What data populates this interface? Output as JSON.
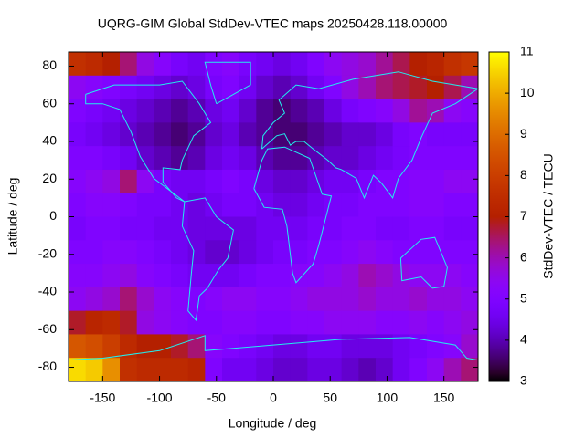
{
  "chart_data": {
    "type": "heatmap",
    "title": "UQRG-GIM Global StdDev-VTEC maps 20250428.118.00000",
    "x_label": "Longitude / deg",
    "y_label": "Latitude / deg",
    "colorbar_label": "StdDev-VTEC / TECU",
    "colormap": "gnuplot",
    "xlim": [
      -180,
      180
    ],
    "ylim": [
      -87.5,
      87.5
    ],
    "zlim": [
      3,
      11
    ],
    "xticks": [
      -150,
      -100,
      -50,
      0,
      50,
      100,
      150
    ],
    "yticks": [
      -80,
      -60,
      -40,
      -20,
      0,
      20,
      40,
      60,
      80
    ],
    "zticks": [
      3,
      4,
      5,
      6,
      7,
      8,
      9,
      10,
      11
    ],
    "x": [
      -172.5,
      -157.5,
      -142.5,
      -127.5,
      -112.5,
      -97.5,
      -82.5,
      -67.5,
      -52.5,
      -37.5,
      -22.5,
      -7.5,
      7.5,
      22.5,
      37.5,
      52.5,
      67.5,
      82.5,
      97.5,
      112.5,
      127.5,
      142.5,
      157.5,
      172.5
    ],
    "y": [
      81.25,
      68.75,
      56.25,
      43.75,
      31.25,
      18.75,
      6.25,
      -6.25,
      -18.75,
      -31.25,
      -43.75,
      -56.25,
      -68.75,
      -81.25
    ],
    "z": [
      [
        7.6,
        7.4,
        7.0,
        6.4,
        5.6,
        5.2,
        4.8,
        4.6,
        5.0,
        5.2,
        4.8,
        4.6,
        4.4,
        4.6,
        5.0,
        5.4,
        5.6,
        5.8,
        6.2,
        6.6,
        7.0,
        7.2,
        7.6,
        7.8
      ],
      [
        5.4,
        5.2,
        5.0,
        4.8,
        4.6,
        4.4,
        4.2,
        4.4,
        4.8,
        5.0,
        4.6,
        4.2,
        4.0,
        4.2,
        4.6,
        5.0,
        5.6,
        6.0,
        6.4,
        6.6,
        6.8,
        7.0,
        6.6,
        6.0
      ],
      [
        5.0,
        4.8,
        4.6,
        4.4,
        4.2,
        4.0,
        3.8,
        4.0,
        4.4,
        4.6,
        4.2,
        3.8,
        3.6,
        3.8,
        4.0,
        4.4,
        4.8,
        5.0,
        5.2,
        5.6,
        6.2,
        6.0,
        5.4,
        5.2
      ],
      [
        4.8,
        4.6,
        4.4,
        4.2,
        4.0,
        3.8,
        3.6,
        3.8,
        4.2,
        4.4,
        4.0,
        3.8,
        3.6,
        3.6,
        3.8,
        4.0,
        4.2,
        4.2,
        4.4,
        4.8,
        5.0,
        4.8,
        4.8,
        4.8
      ],
      [
        5.0,
        5.0,
        4.8,
        4.6,
        4.2,
        4.0,
        3.8,
        4.0,
        4.4,
        4.6,
        4.4,
        4.0,
        3.8,
        3.8,
        4.0,
        4.2,
        4.2,
        4.4,
        4.6,
        4.8,
        5.0,
        5.0,
        5.0,
        5.0
      ],
      [
        5.2,
        5.4,
        5.6,
        6.4,
        5.4,
        4.8,
        4.6,
        4.6,
        4.8,
        5.0,
        4.8,
        4.4,
        4.2,
        4.2,
        4.4,
        4.6,
        4.6,
        4.8,
        5.0,
        5.0,
        5.2,
        5.2,
        5.4,
        5.4
      ],
      [
        5.0,
        5.2,
        5.2,
        5.0,
        4.8,
        4.8,
        4.6,
        4.4,
        4.6,
        4.8,
        4.8,
        4.6,
        4.4,
        4.4,
        4.6,
        4.8,
        4.8,
        5.0,
        5.0,
        5.0,
        5.2,
        5.2,
        5.0,
        5.0
      ],
      [
        4.8,
        5.0,
        5.0,
        4.8,
        4.8,
        4.6,
        4.6,
        4.4,
        4.4,
        4.4,
        4.4,
        4.6,
        4.6,
        4.6,
        4.8,
        4.8,
        5.0,
        5.0,
        4.8,
        4.8,
        5.0,
        5.0,
        4.8,
        4.8
      ],
      [
        5.0,
        5.0,
        5.2,
        5.2,
        5.0,
        4.8,
        4.6,
        4.4,
        4.2,
        4.2,
        4.4,
        4.6,
        4.8,
        4.8,
        5.0,
        5.0,
        5.2,
        5.4,
        5.2,
        5.0,
        5.0,
        5.0,
        5.0,
        5.0
      ],
      [
        5.2,
        5.2,
        5.4,
        5.6,
        5.2,
        5.0,
        4.8,
        4.6,
        4.6,
        4.6,
        4.8,
        5.0,
        5.0,
        5.2,
        5.2,
        5.4,
        5.6,
        6.0,
        5.8,
        5.6,
        5.4,
        5.4,
        5.4,
        5.2
      ],
      [
        5.4,
        5.6,
        5.8,
        6.4,
        5.8,
        5.4,
        5.2,
        5.0,
        5.2,
        5.4,
        5.4,
        5.2,
        5.2,
        5.4,
        5.6,
        5.6,
        5.6,
        5.8,
        5.6,
        5.6,
        5.8,
        5.6,
        5.6,
        5.4
      ],
      [
        6.8,
        7.2,
        7.4,
        6.8,
        5.6,
        5.4,
        5.2,
        5.0,
        5.0,
        5.2,
        5.2,
        5.0,
        5.0,
        5.2,
        5.2,
        5.4,
        5.4,
        5.4,
        5.2,
        5.2,
        5.4,
        5.2,
        5.4,
        5.6
      ],
      [
        8.6,
        8.4,
        8.0,
        7.4,
        7.0,
        7.0,
        6.8,
        6.4,
        5.2,
        5.0,
        4.8,
        4.6,
        4.4,
        4.4,
        4.6,
        4.6,
        4.4,
        4.4,
        4.4,
        4.6,
        4.8,
        5.0,
        5.2,
        5.8
      ],
      [
        10.6,
        10.4,
        9.6,
        7.6,
        7.4,
        7.4,
        7.4,
        7.2,
        5.0,
        4.6,
        4.6,
        4.4,
        4.2,
        4.2,
        4.4,
        4.4,
        4.2,
        4.0,
        4.2,
        4.6,
        5.0,
        5.4,
        6.0,
        6.4
      ]
    ]
  }
}
